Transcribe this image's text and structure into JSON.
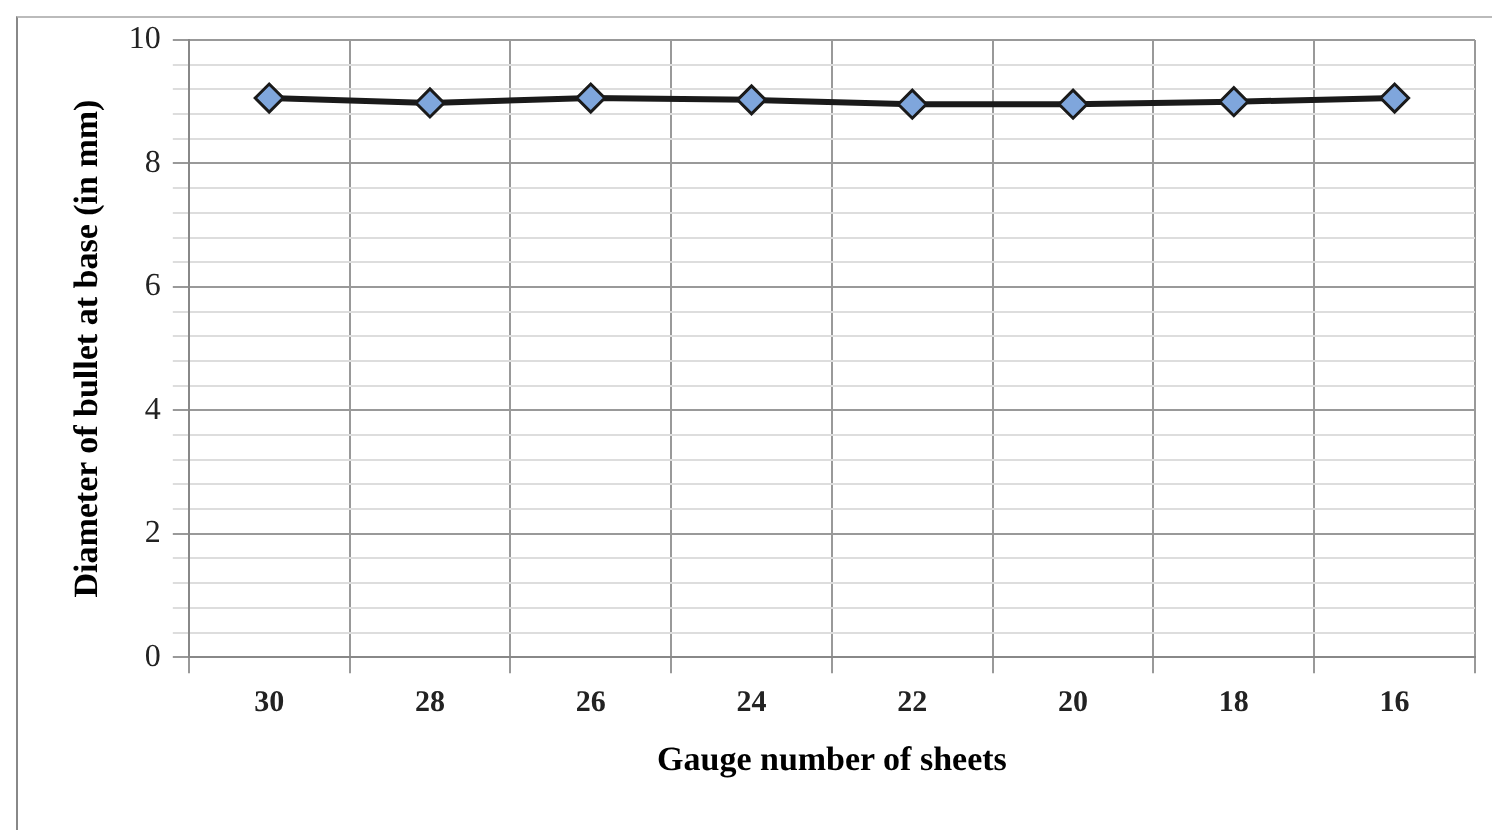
{
  "chart_data": {
    "type": "line",
    "xlabel": "Gauge number of sheets",
    "ylabel": "Diameter of bullet at base (in mm)",
    "categories": [
      "30",
      "28",
      "26",
      "24",
      "22",
      "20",
      "18",
      "16"
    ],
    "series": [
      {
        "color": "#1a1a1a",
        "values": [
          9.06,
          8.98,
          9.06,
          9.03,
          8.96,
          8.96,
          9.0,
          9.06
        ]
      }
    ],
    "ylim": [
      0,
      10
    ],
    "yticks": [
      0,
      {
        "value": 0.4,
        "label": null
      },
      {
        "value": 0.8,
        "label": null
      },
      {
        "value": 1.2,
        "label": null
      },
      {
        "value": 1.6,
        "label": null
      },
      2,
      {
        "value": 2.4,
        "label": null
      },
      {
        "value": 2.8,
        "label": null
      },
      {
        "value": 3.2,
        "label": null
      },
      {
        "value": 3.6,
        "label": null
      },
      4,
      {
        "value": 4.4,
        "label": null
      },
      {
        "value": 4.8,
        "label": null
      },
      {
        "value": 5.2,
        "label": null
      },
      {
        "value": 5.6,
        "label": null
      },
      6,
      {
        "value": 6.4,
        "label": null
      },
      {
        "value": 6.8,
        "label": null
      },
      {
        "value": 7.2,
        "label": null
      },
      {
        "value": 7.6,
        "label": null
      },
      8,
      {
        "value": 8.4,
        "label": null
      },
      {
        "value": 8.8,
        "label": null
      },
      {
        "value": 9.2,
        "label": null
      },
      {
        "value": 9.6,
        "label": null
      },
      10
    ],
    "grid": true,
    "marker": "diamond",
    "line_style": "solid",
    "legend": false
  }
}
